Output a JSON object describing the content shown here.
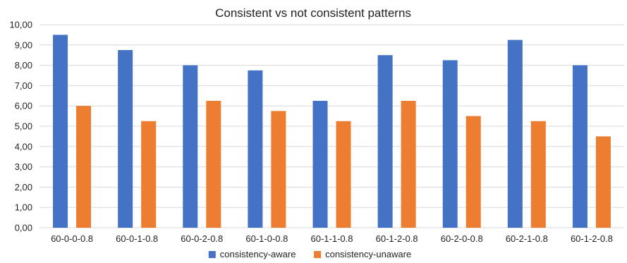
{
  "chart_data": {
    "type": "bar",
    "title": "Consistent vs not consistent patterns",
    "xlabel": "",
    "ylabel": "",
    "ylim": [
      0,
      10
    ],
    "yticks": [
      "0,00",
      "1,00",
      "2,00",
      "3,00",
      "4,00",
      "5,00",
      "6,00",
      "7,00",
      "8,00",
      "9,00",
      "10,00"
    ],
    "categories": [
      "60-0-0-0.8",
      "60-0-1-0.8",
      "60-0-2-0.8",
      "60-1-0-0.8",
      "60-1-1-0.8",
      "60-1-2-0.8",
      "60-2-0-0.8",
      "60-2-1-0.8",
      "60-1-2-0.8"
    ],
    "series": [
      {
        "name": "consistency-aware",
        "color": "#4472c4",
        "values": [
          9.5,
          8.75,
          8.0,
          7.75,
          6.25,
          8.5,
          8.25,
          9.25,
          8.0
        ]
      },
      {
        "name": "consistency-unaware",
        "color": "#ed7d31",
        "values": [
          6.0,
          5.25,
          6.25,
          5.75,
          5.25,
          6.25,
          5.5,
          5.25,
          4.5
        ]
      }
    ],
    "grid": true,
    "legend_position": "bottom"
  }
}
